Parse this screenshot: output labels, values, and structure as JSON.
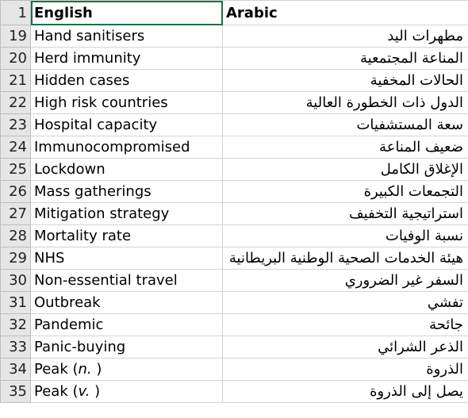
{
  "header": {
    "row_number": "1",
    "col_english": "English",
    "col_arabic": "Arabic"
  },
  "rows": [
    {
      "n": "19",
      "en": "Hand sanitisers",
      "ar": "مطهرات اليد"
    },
    {
      "n": "20",
      "en": "Herd immunity",
      "ar": "المناعة المجتمعية"
    },
    {
      "n": "21",
      "en": "Hidden cases",
      "ar": "الحالات المخفية"
    },
    {
      "n": "22",
      "en": "High risk countries",
      "ar": "الدول ذات الخطورة العالية"
    },
    {
      "n": "23",
      "en": "Hospital capacity",
      "ar": "سعة المستشفيات"
    },
    {
      "n": "24",
      "en": "Immunocompromised",
      "ar": "ضعيف المناعة"
    },
    {
      "n": "25",
      "en": "Lockdown",
      "ar": "الإغلاق الكامل"
    },
    {
      "n": "26",
      "en": "Mass gatherings",
      "ar": "التجمعات الكبيرة"
    },
    {
      "n": "27",
      "en": "Mitigation strategy",
      "ar": "استراتيجية التخفيف"
    },
    {
      "n": "28",
      "en": "Mortality rate",
      "ar": "نسبة الوفيات"
    },
    {
      "n": "29",
      "en": "NHS",
      "ar": "هيئة الخدمات الصحية الوطنية البريطانية"
    },
    {
      "n": "30",
      "en": "Non-essential travel",
      "ar": "السفر غير الضروري"
    },
    {
      "n": "31",
      "en": "Outbreak",
      "ar": "تفشي"
    },
    {
      "n": "32",
      "en": "Pandemic",
      "ar": "جائحة"
    },
    {
      "n": "33",
      "en": "Panic-buying",
      "ar": "الذعر الشرائي"
    },
    {
      "n": "34",
      "en_main": "Peak (",
      "en_it": "n.",
      "en_end": " )",
      "ar": "الذروة"
    },
    {
      "n": "35",
      "en_main": "Peak (",
      "en_it": "v.",
      "en_end": " )",
      "ar": "يصل إلى الذروة"
    }
  ]
}
